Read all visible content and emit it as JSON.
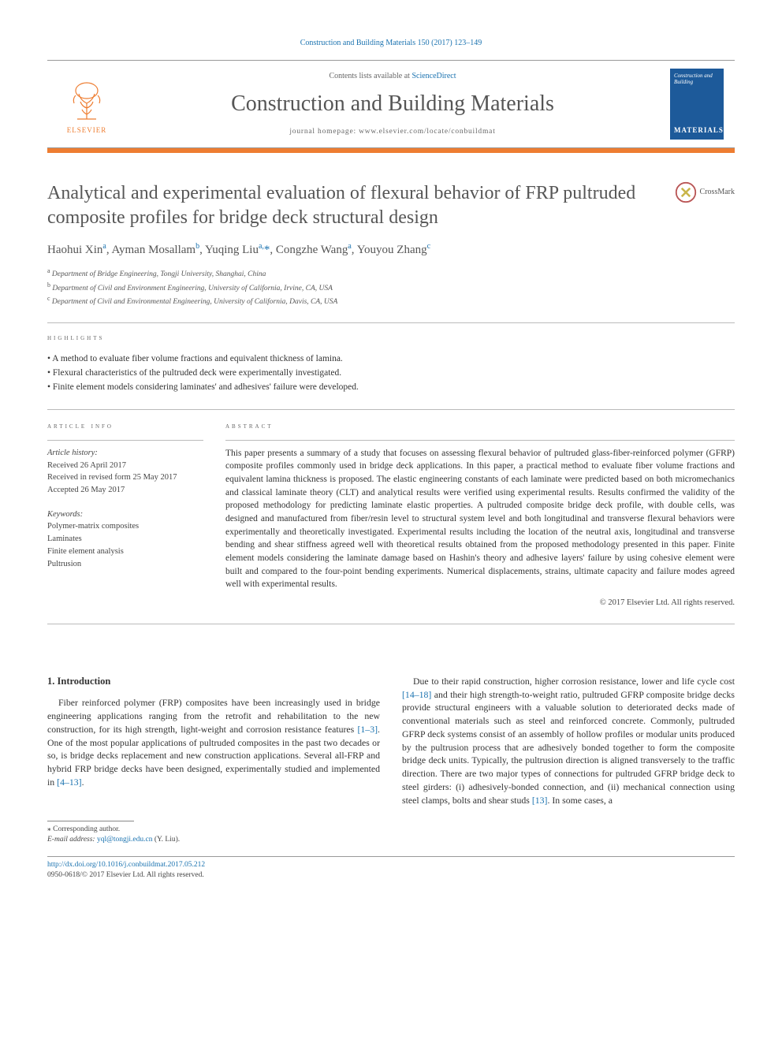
{
  "journal_ref": "Construction and Building Materials 150 (2017) 123–149",
  "masthead": {
    "contents_prefix": "Contents lists available at ",
    "contents_link": "ScienceDirect",
    "journal_title": "Construction and Building Materials",
    "homepage_prefix": "journal homepage: ",
    "homepage_url": "www.elsevier.com/locate/conbuildmat",
    "publisher_mark": "ELSEVIER",
    "cover_top": "Construction and Building",
    "cover_bot": "MATERIALS"
  },
  "colors": {
    "accent_orange": "#ee7d31",
    "link_blue": "#1b73b0",
    "cover_blue": "#1d5a9a",
    "rule_gray": "#999999"
  },
  "crossmark_label": "CrossMark",
  "title": "Analytical and experimental evaluation of flexural behavior of FRP pultruded composite profiles for bridge deck structural design",
  "authors_html": "Haohui Xin<sup>a</sup>, Ayman Mosallam<sup>b</sup>, Yuqing Liu<sup>a,</sup><span class='corr-star'>*</span>, Congzhe Wang<sup>a</sup>, Youyou Zhang<sup>c</sup>",
  "affiliations": [
    {
      "sup": "a",
      "text": "Department of Bridge Engineering, Tongji University, Shanghai, China"
    },
    {
      "sup": "b",
      "text": "Department of Civil and Environment Engineering, University of California, Irvine, CA, USA"
    },
    {
      "sup": "c",
      "text": "Department of Civil and Environmental Engineering, University of California, Davis, CA, USA"
    }
  ],
  "highlights_heading": "highlights",
  "highlights": [
    "A method to evaluate fiber volume fractions and equivalent thickness of lamina.",
    "Flexural characteristics of the pultruded deck were experimentally investigated.",
    "Finite element models considering laminates' and adhesives' failure were developed."
  ],
  "article_info_heading": "article info",
  "history_heading": "Article history:",
  "history": [
    "Received 26 April 2017",
    "Received in revised form 25 May 2017",
    "Accepted 26 May 2017"
  ],
  "keywords_heading": "Keywords:",
  "keywords": [
    "Polymer-matrix composites",
    "Laminates",
    "Finite element analysis",
    "Pultrusion"
  ],
  "abstract_heading": "abstract",
  "abstract": "This paper presents a summary of a study that focuses on assessing flexural behavior of pultruded glass-fiber-reinforced polymer (GFRP) composite profiles commonly used in bridge deck applications. In this paper, a practical method to evaluate fiber volume fractions and equivalent lamina thickness is proposed. The elastic engineering constants of each laminate were predicted based on both micromechanics and classical laminate theory (CLT) and analytical results were verified using experimental results. Results confirmed the validity of the proposed methodology for predicting laminate elastic properties. A pultruded composite bridge deck profile, with double cells, was designed and manufactured from fiber/resin level to structural system level and both longitudinal and transverse flexural behaviors were experimentally and theoretically investigated. Experimental results including the location of the neutral axis, longitudinal and transverse bending and shear stiffness agreed well with theoretical results obtained from the proposed methodology presented in this paper. Finite element models considering the laminate damage based on Hashin's theory and adhesive layers' failure by using cohesive element were built and compared to the four-point bending experiments. Numerical displacements, strains, ultimate capacity and failure modes agreed well with experimental results.",
  "copyright": "© 2017 Elsevier Ltd. All rights reserved.",
  "intro_heading": "1. Introduction",
  "intro_left_html": "Fiber reinforced polymer (FRP) composites have been increasingly used in bridge engineering applications ranging from the retrofit and rehabilitation to the new construction, for its high strength, light-weight and corrosion resistance features <a class='cite' href='#'>[1–3]</a>. One of the most popular applications of pultruded composites in the past two decades or so, is bridge decks replacement and new construction applications. Several all-FRP and hybrid FRP bridge decks have been designed, experimentally studied and implemented in <a class='cite' href='#'>[4–13]</a>.",
  "intro_right_html": "Due to their rapid construction, higher corrosion resistance, lower and life cycle cost <a class='cite' href='#'>[14–18]</a> and their high strength-to-weight ratio, pultruded GFRP composite bridge decks provide structural engineers with a valuable solution to deteriorated decks made of conventional materials such as steel and reinforced concrete. Commonly, pultruded GFRP deck systems consist of an assembly of hollow profiles or modular units produced by the pultrusion process that are adhesively bonded together to form the composite bridge deck units. Typically, the pultrusion direction is aligned transversely to the traffic direction. There are two major types of connections for pultruded GFRP bridge deck to steel girders: (i) adhesively-bonded connection, and (ii) mechanical connection using steel clamps, bolts and shear studs <a class='cite' href='#'>[13]</a>. In some cases, a",
  "footnote": {
    "star": "⁎ Corresponding author.",
    "email_label": "E-mail address:",
    "email": "yql@tongji.edu.cn",
    "email_who": "(Y. Liu)."
  },
  "footer": {
    "doi": "http://dx.doi.org/10.1016/j.conbuildmat.2017.05.212",
    "issn_line": "0950-0618/© 2017 Elsevier Ltd. All rights reserved."
  }
}
